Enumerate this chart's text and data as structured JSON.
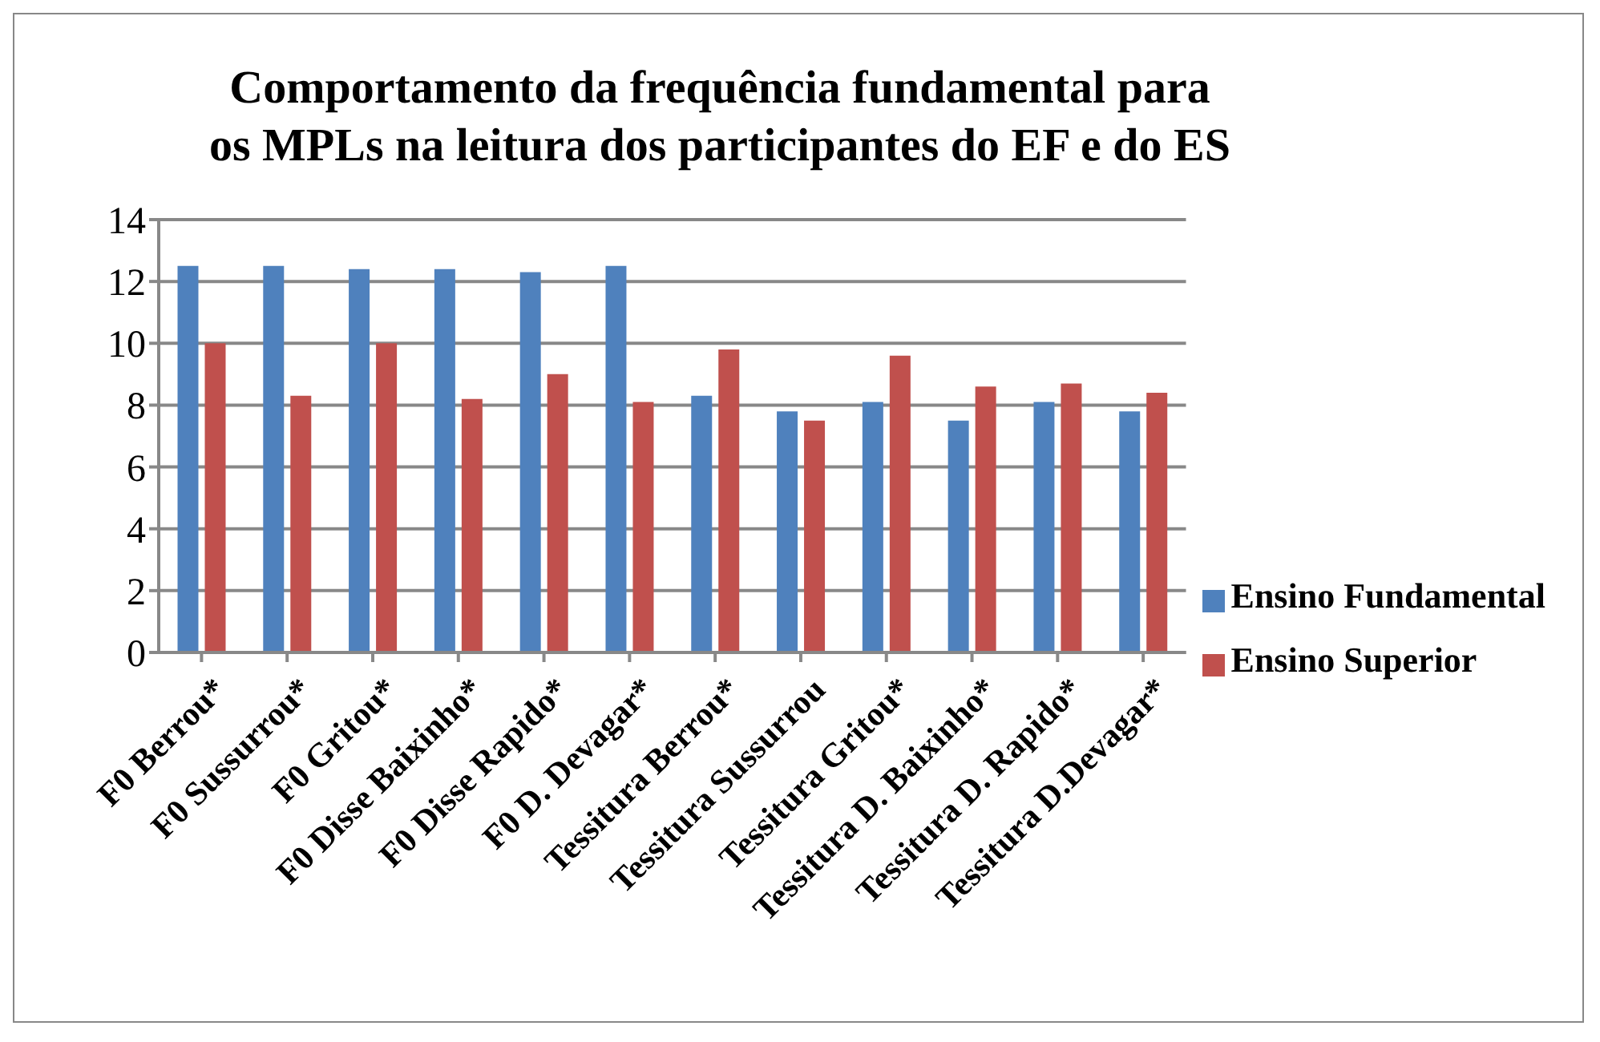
{
  "chart_data": {
    "type": "bar",
    "title": "Comportamento da frequência fundamental para os MPLs na leitura dos participantes do EF e do ES",
    "categories": [
      "F0 Berrou*",
      "F0 Sussurrou*",
      "F0 Gritou*",
      "F0 Disse Baixinho*",
      "F0 Disse Rapido*",
      "F0 D. Devagar*",
      "Tessitura Berrou*",
      "Tessitura Sussurrou",
      "Tessitura Gritou*",
      "Tessitura D. Baixinho*",
      "Tessitura D. Rapido*",
      "Tessitura D.Devagar*"
    ],
    "series": [
      {
        "name": "Ensino Fundamental",
        "color": "#4f81bd",
        "values": [
          12.5,
          12.5,
          12.4,
          12.4,
          12.3,
          12.5,
          8.3,
          7.8,
          8.1,
          7.5,
          8.1,
          7.8
        ]
      },
      {
        "name": "Ensino Superior",
        "color": "#c0504d",
        "values": [
          10,
          8.3,
          10,
          8.2,
          9,
          8.1,
          9.8,
          7.5,
          9.6,
          8.6,
          8.7,
          8.4
        ]
      }
    ],
    "ylim": [
      0,
      14
    ],
    "yticks": [
      0,
      2,
      4,
      6,
      8,
      10,
      12,
      14
    ],
    "grid": "y",
    "legend": "right"
  }
}
